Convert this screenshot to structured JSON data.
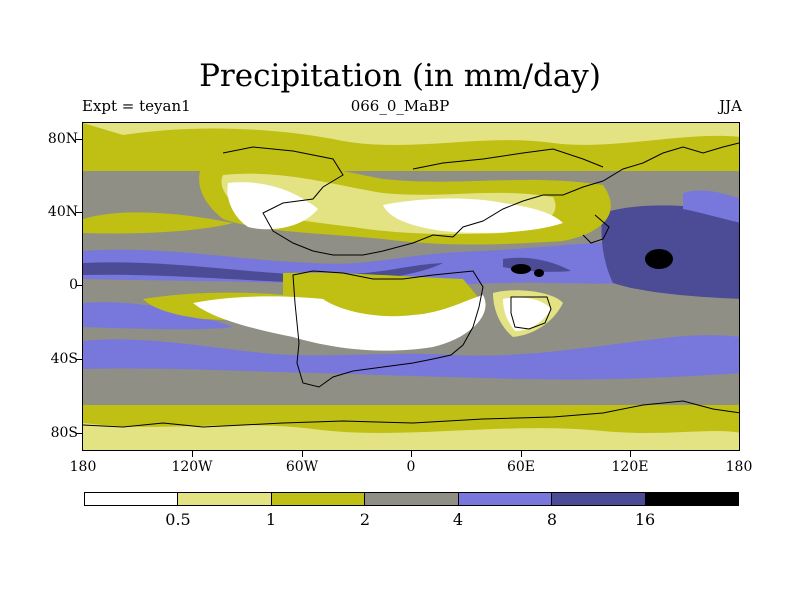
{
  "header": {
    "title": "Precipitation (in mm/day)",
    "left": "Expt = teyan1",
    "center": "066_0_MaBP",
    "right": "JJA"
  },
  "axes": {
    "y_ticks": [
      "80N",
      "40N",
      "0",
      "40S",
      "80S"
    ],
    "x_ticks": [
      "180",
      "120W",
      "60W",
      "0",
      "60E",
      "120E",
      "180"
    ]
  },
  "colorbar": {
    "labels": [
      "0.5",
      "1",
      "2",
      "4",
      "8",
      "16"
    ],
    "colors": [
      "#ffffff",
      "#e3e384",
      "#bfbf14",
      "#8f8f86",
      "#7777dc",
      "#4b4b96",
      "#000000"
    ]
  }
}
